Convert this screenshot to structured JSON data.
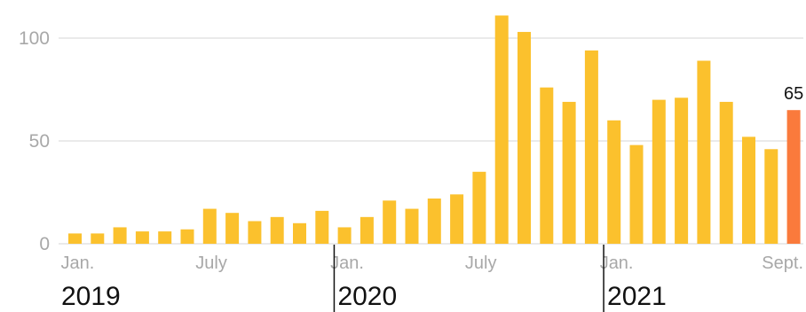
{
  "chart_data": {
    "type": "bar",
    "categories": [
      "2019-01",
      "2019-02",
      "2019-03",
      "2019-04",
      "2019-05",
      "2019-06",
      "2019-07",
      "2019-08",
      "2019-09",
      "2019-10",
      "2019-11",
      "2019-12",
      "2020-01",
      "2020-02",
      "2020-03",
      "2020-04",
      "2020-05",
      "2020-06",
      "2020-07",
      "2020-08",
      "2020-09",
      "2020-10",
      "2020-11",
      "2020-12",
      "2021-01",
      "2021-02",
      "2021-03",
      "2021-04",
      "2021-05",
      "2021-06",
      "2021-07",
      "2021-08",
      "2021-09"
    ],
    "values": [
      5,
      5,
      8,
      6,
      6,
      7,
      17,
      15,
      11,
      13,
      10,
      16,
      8,
      13,
      21,
      17,
      22,
      24,
      35,
      111,
      103,
      76,
      69,
      94,
      60,
      48,
      70,
      71,
      89,
      69,
      52,
      46,
      65
    ],
    "ylim": [
      0,
      112
    ],
    "yticks": [
      0,
      50,
      100
    ],
    "xtick_labels": [
      {
        "index": 0,
        "label": "Jan."
      },
      {
        "index": 6,
        "label": "July"
      },
      {
        "index": 12,
        "label": "Jan."
      },
      {
        "index": 18,
        "label": "July"
      },
      {
        "index": 24,
        "label": "Jan."
      },
      {
        "index": 32,
        "label": "Sept."
      }
    ],
    "years": [
      {
        "start_index": 0,
        "label": "2019"
      },
      {
        "start_index": 12,
        "label": "2020"
      },
      {
        "start_index": 24,
        "label": "2021"
      }
    ],
    "highlight": {
      "index": 32,
      "label": "65"
    },
    "title": "",
    "xlabel": "",
    "ylabel": "",
    "grid": true,
    "colors": {
      "bar": "#fbc12d",
      "highlight": "#fa7a3c",
      "grid": "#d6d6d6",
      "tick": "#a8a8a8",
      "year": "#111111"
    }
  }
}
